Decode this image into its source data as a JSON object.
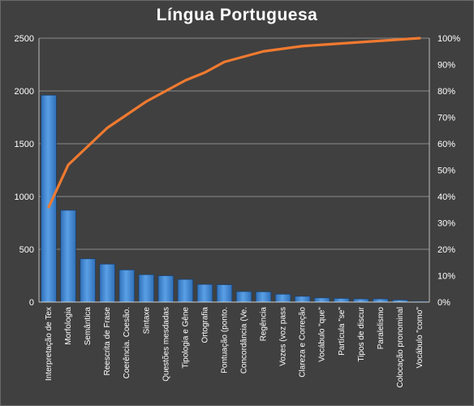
{
  "chart_data": {
    "type": "bar",
    "title": "Língua  Portuguesa",
    "categories": [
      "Interpretação de Tex",
      "Morfologia",
      "Semântica",
      "Reescrita de Frase",
      "Coerência. Coesão.",
      "Sintaxe",
      "Questões mesdadas",
      "Tipologia e Gêne",
      "Ortografia",
      "Pontuação (ponto.",
      "Concordância (Ve.",
      "Regência",
      "Vozes (voz pass",
      "Clareza e Correção",
      "Vocábulo \"que\"",
      "Partícula \"se\"",
      "Tipos de discur",
      "Paralelismo",
      "Colocação pronominal",
      "Vocábulo \"como\""
    ],
    "series": [
      {
        "type": "bar",
        "axis": "left",
        "color": "#4a90d9",
        "values": [
          1960,
          870,
          410,
          360,
          305,
          260,
          250,
          215,
          168,
          165,
          100,
          98,
          75,
          55,
          40,
          35,
          30,
          30,
          20,
          8
        ]
      },
      {
        "type": "line",
        "axis": "right",
        "unit": "%",
        "color": "#f07a30",
        "values": [
          36,
          52,
          59,
          66,
          71,
          76,
          80,
          84,
          87,
          91,
          93,
          95,
          96,
          97,
          97.5,
          98,
          98.5,
          99,
          99.5,
          100
        ]
      }
    ],
    "y_left": {
      "min": 0,
      "max": 2500,
      "ticks": [
        "0",
        "500",
        "1000",
        "1500",
        "2000",
        "2500"
      ]
    },
    "y_right": {
      "min": 0,
      "max": 100,
      "ticks": [
        "0%",
        "10%",
        "20%",
        "30%",
        "40%",
        "50%",
        "60%",
        "70%",
        "80%",
        "90%",
        "100%"
      ]
    },
    "grid": true,
    "legend": "none",
    "colors": {
      "background": "#404040",
      "grid": "#8a8a8a",
      "bar": "#4a90d9",
      "line": "#f07a30"
    }
  }
}
